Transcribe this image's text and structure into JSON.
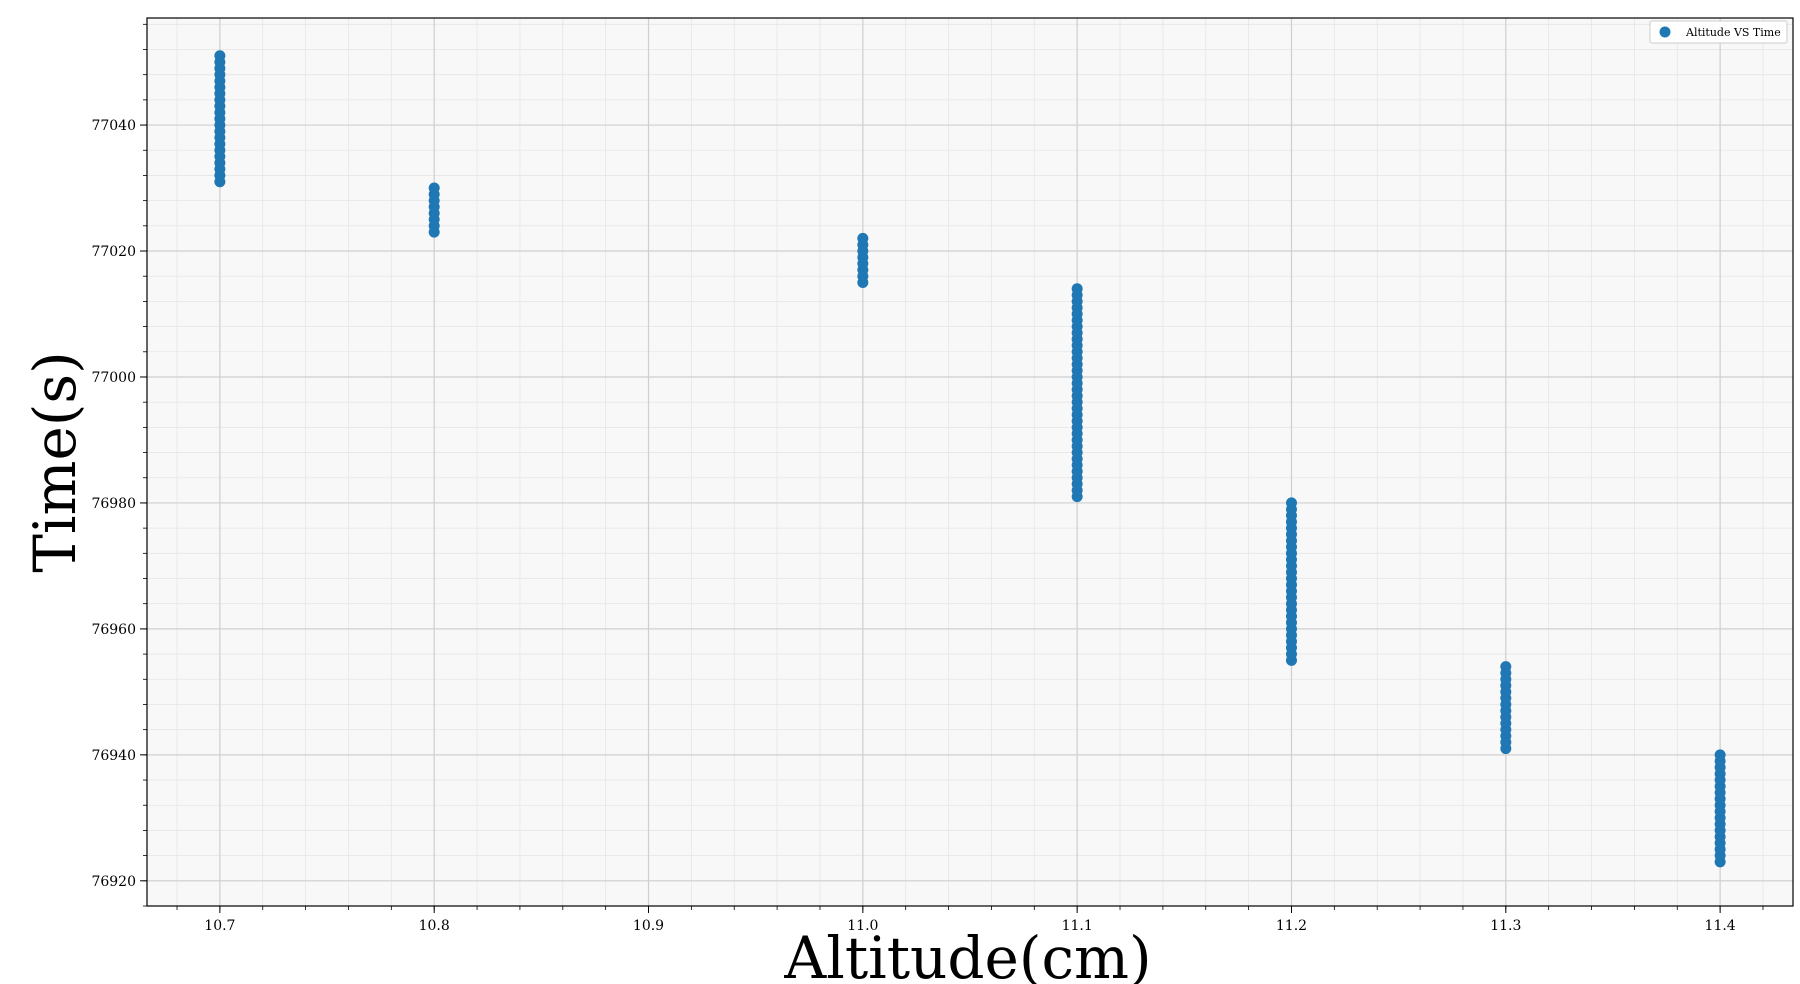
{
  "chart_data": {
    "type": "scatter",
    "xlabel": "Altitude(cm)",
    "ylabel": "Time(s)",
    "xlim": [
      10.666,
      11.434
    ],
    "ylim": [
      76916,
      77057
    ],
    "xticks": [
      10.7,
      10.8,
      10.9,
      11.0,
      11.1,
      11.2,
      11.3,
      11.4
    ],
    "xtick_labels": [
      "10.7",
      "10.8",
      "10.9",
      "11.0",
      "11.1",
      "11.2",
      "11.3",
      "11.4"
    ],
    "yticks": [
      76920,
      76940,
      76960,
      76980,
      77000,
      77020,
      77040
    ],
    "ytick_labels": [
      "76920",
      "76940",
      "76960",
      "76980",
      "77000",
      "77020",
      "77040"
    ],
    "grid": true,
    "legend_position": "top-right",
    "series": [
      {
        "name": "Altitude VS Time",
        "color": "#1f77b4",
        "groups": [
          {
            "x": 10.7,
            "y_start": 77031,
            "y_end": 77051
          },
          {
            "x": 10.8,
            "y_start": 77023,
            "y_end": 77030
          },
          {
            "x": 11.0,
            "y_start": 77015,
            "y_end": 77022
          },
          {
            "x": 11.1,
            "y_start": 76981,
            "y_end": 77014
          },
          {
            "x": 11.2,
            "y_start": 76955,
            "y_end": 76980
          },
          {
            "x": 11.3,
            "y_start": 76941,
            "y_end": 76954
          },
          {
            "x": 11.4,
            "y_start": 76923,
            "y_end": 76940
          }
        ]
      }
    ]
  }
}
